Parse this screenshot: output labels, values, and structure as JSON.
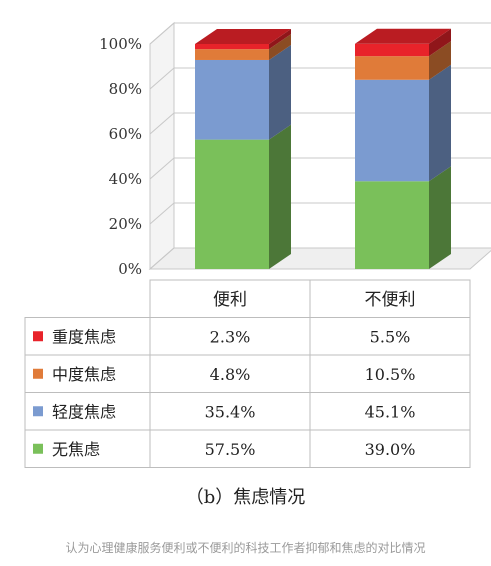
{
  "chart_data": {
    "type": "bar",
    "stacked": true,
    "categories": [
      "便利",
      "不便利"
    ],
    "series": [
      {
        "name": "无焦虑",
        "color": "#7ac05a",
        "values": [
          57.5,
          39.0
        ],
        "labels": [
          "57.5%",
          "39.0%"
        ]
      },
      {
        "name": "轻度焦虑",
        "color": "#7b9bd0",
        "values": [
          35.4,
          45.1
        ],
        "labels": [
          "35.4%",
          "45.1%"
        ]
      },
      {
        "name": "中度焦虑",
        "color": "#e07b39",
        "values": [
          4.8,
          10.5
        ],
        "labels": [
          "4.8%",
          "10.5%"
        ]
      },
      {
        "name": "重度焦虑",
        "color": "#e8232a",
        "values": [
          2.3,
          5.5
        ],
        "labels": [
          "2.3%",
          "5.5%"
        ]
      }
    ],
    "yticks": [
      "0%",
      "20%",
      "40%",
      "60%",
      "80%",
      "100%"
    ],
    "ylim": [
      0,
      100
    ],
    "grid": true,
    "legend": "data-table",
    "table_row_order": [
      "重度焦虑",
      "中度焦虑",
      "轻度焦虑",
      "无焦虑"
    ]
  },
  "subtitle": "（b）焦虑情况",
  "caption": "认为心理健康服务便利或不便利的科技工作者抑郁和焦虑的对比情况"
}
